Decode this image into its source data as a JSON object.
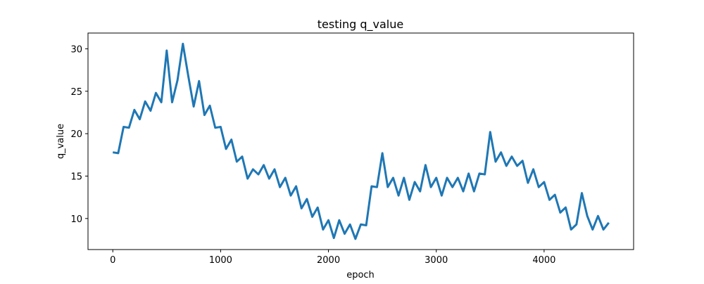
{
  "chart_data": {
    "type": "line",
    "title": "testing q_value",
    "x_label": "epoch",
    "y_label": "q_value",
    "x": [
      0,
      50,
      100,
      150,
      200,
      250,
      300,
      350,
      400,
      450,
      500,
      550,
      600,
      650,
      700,
      750,
      800,
      850,
      900,
      950,
      1000,
      1050,
      1100,
      1150,
      1200,
      1250,
      1300,
      1350,
      1400,
      1450,
      1500,
      1550,
      1600,
      1650,
      1700,
      1750,
      1800,
      1850,
      1900,
      1950,
      2000,
      2050,
      2100,
      2150,
      2200,
      2250,
      2300,
      2350,
      2400,
      2450,
      2500,
      2550,
      2600,
      2650,
      2700,
      2750,
      2800,
      2850,
      2900,
      2950,
      3000,
      3050,
      3100,
      3150,
      3200,
      3250,
      3300,
      3350,
      3400,
      3450,
      3500,
      3550,
      3600,
      3650,
      3700,
      3750,
      3800,
      3850,
      3900,
      3950,
      4000,
      4050,
      4100,
      4150,
      4200,
      4250,
      4300,
      4350,
      4400,
      4450,
      4500,
      4550,
      4600
    ],
    "series": [
      {
        "name": "q_value",
        "color": "#1f77b4",
        "values": [
          17.8,
          17.7,
          20.8,
          20.7,
          22.8,
          21.7,
          23.8,
          22.7,
          24.8,
          23.7,
          29.8,
          23.7,
          26.3,
          30.6,
          26.8,
          23.2,
          26.2,
          22.2,
          23.3,
          20.7,
          20.8,
          18.2,
          19.3,
          16.7,
          17.3,
          14.7,
          15.8,
          15.2,
          16.3,
          14.7,
          15.8,
          13.7,
          14.8,
          12.7,
          13.8,
          11.2,
          12.3,
          10.2,
          11.3,
          8.7,
          9.8,
          7.7,
          9.8,
          8.2,
          9.3,
          7.6,
          9.3,
          9.2,
          13.8,
          13.7,
          17.7,
          13.7,
          14.8,
          12.7,
          14.8,
          12.2,
          14.3,
          13.2,
          16.3,
          13.7,
          14.8,
          12.7,
          14.8,
          13.7,
          14.8,
          13.2,
          15.3,
          13.2,
          15.3,
          15.2,
          20.2,
          16.7,
          17.8,
          16.2,
          17.3,
          16.2,
          16.8,
          14.2,
          15.8,
          13.7,
          14.3,
          12.2,
          12.8,
          10.7,
          11.3,
          8.7,
          9.3,
          13.0,
          10.3,
          8.7,
          10.3,
          8.7,
          9.5
        ]
      }
    ],
    "xlim": [
      -230,
      4830
    ],
    "xticks": [
      0,
      1000,
      2000,
      3000,
      4000
    ],
    "ylim": [
      6.34,
      31.86
    ],
    "yticks": [
      10,
      15,
      20,
      25,
      30
    ]
  }
}
